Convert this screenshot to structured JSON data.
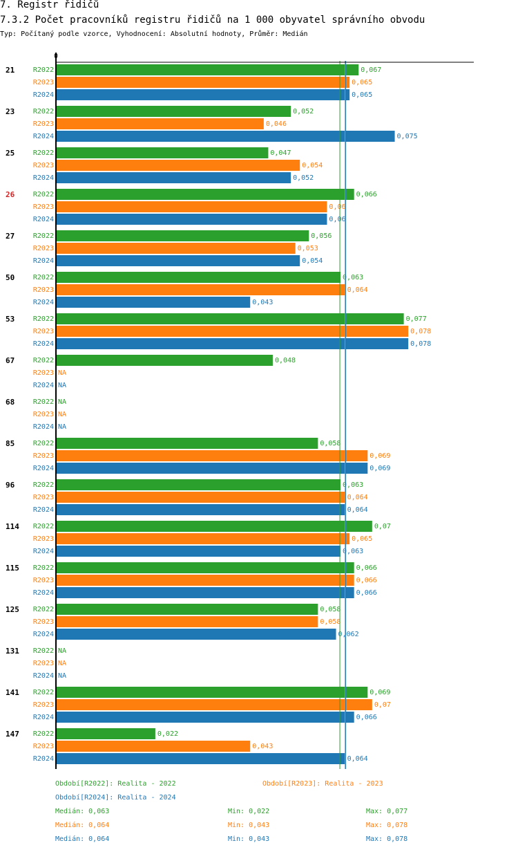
{
  "header": {
    "title": "7. Registr řidičů",
    "subtitle": "7.3.2 Počet pracovníků registru řidičů na 1 000 obyvatel správního obvodu",
    "type_line": "Typ: Počítaný podle vzorce, Vyhodnocení: Absolutní hodnoty, Průměr: Medián"
  },
  "colors": {
    "R2022": "#2ca02c",
    "R2023": "#ff7f0e",
    "R2024": "#1f77b4",
    "highlight": "#d62728",
    "axis": "#000000"
  },
  "chart_data": {
    "type": "bar",
    "orientation": "horizontal",
    "axis_zero_label": "0",
    "xlim": [
      0,
      0.0925
    ],
    "na_label": "NA",
    "series_names": [
      "R2022",
      "R2023",
      "R2024"
    ],
    "groups": [
      {
        "label": "21",
        "highlight": false,
        "values": [
          0.067,
          0.065,
          0.065
        ],
        "labels": [
          "0,067",
          "0,065",
          "0,065"
        ]
      },
      {
        "label": "23",
        "highlight": false,
        "values": [
          0.052,
          0.046,
          0.075
        ],
        "labels": [
          "0,052",
          "0,046",
          "0,075"
        ]
      },
      {
        "label": "25",
        "highlight": false,
        "values": [
          0.047,
          0.054,
          0.052
        ],
        "labels": [
          "0,047",
          "0,054",
          "0,052"
        ]
      },
      {
        "label": "26",
        "highlight": true,
        "values": [
          0.066,
          0.06,
          0.06
        ],
        "labels": [
          "0,066",
          "0,06",
          "0,06"
        ]
      },
      {
        "label": "27",
        "highlight": false,
        "values": [
          0.056,
          0.053,
          0.054
        ],
        "labels": [
          "0,056",
          "0,053",
          "0,054"
        ]
      },
      {
        "label": "50",
        "highlight": false,
        "values": [
          0.063,
          0.064,
          0.043
        ],
        "labels": [
          "0,063",
          "0,064",
          "0,043"
        ]
      },
      {
        "label": "53",
        "highlight": false,
        "values": [
          0.077,
          0.078,
          0.078
        ],
        "labels": [
          "0,077",
          "0,078",
          "0,078"
        ]
      },
      {
        "label": "67",
        "highlight": false,
        "values": [
          0.048,
          null,
          null
        ],
        "labels": [
          "0,048",
          "NA",
          "NA"
        ]
      },
      {
        "label": "68",
        "highlight": false,
        "values": [
          null,
          null,
          null
        ],
        "labels": [
          "NA",
          "NA",
          "NA"
        ]
      },
      {
        "label": "85",
        "highlight": false,
        "values": [
          0.058,
          0.069,
          0.069
        ],
        "labels": [
          "0,058",
          "0,069",
          "0,069"
        ]
      },
      {
        "label": "96",
        "highlight": false,
        "values": [
          0.063,
          0.064,
          0.064
        ],
        "labels": [
          "0,063",
          "0,064",
          "0,064"
        ]
      },
      {
        "label": "114",
        "highlight": false,
        "values": [
          0.07,
          0.065,
          0.063
        ],
        "labels": [
          "0,07",
          "0,065",
          "0,063"
        ]
      },
      {
        "label": "115",
        "highlight": false,
        "values": [
          0.066,
          0.066,
          0.066
        ],
        "labels": [
          "0,066",
          "0,066",
          "0,066"
        ]
      },
      {
        "label": "125",
        "highlight": false,
        "values": [
          0.058,
          0.058,
          0.062
        ],
        "labels": [
          "0,058",
          "0,058",
          "0,062"
        ]
      },
      {
        "label": "131",
        "highlight": false,
        "values": [
          null,
          null,
          null
        ],
        "labels": [
          "NA",
          "NA",
          "NA"
        ]
      },
      {
        "label": "141",
        "highlight": false,
        "values": [
          0.069,
          0.07,
          0.066
        ],
        "labels": [
          "0,069",
          "0,07",
          "0,066"
        ]
      },
      {
        "label": "147",
        "highlight": false,
        "values": [
          0.022,
          0.043,
          0.064
        ],
        "labels": [
          "0,022",
          "0,043",
          "0,064"
        ]
      }
    ],
    "medians": [
      0.063,
      0.064,
      0.064
    ]
  },
  "legend": {
    "periods": [
      "Období[R2022]: Realita - 2022",
      "Období[R2023]: Realita - 2023",
      "Období[R2024]: Realita - 2024"
    ],
    "stats": [
      {
        "median": "Medián: 0,063",
        "min": "Min: 0,022",
        "max": "Max: 0,077"
      },
      {
        "median": "Medián: 0,064",
        "min": "Min: 0,043",
        "max": "Max: 0,078"
      },
      {
        "median": "Medián: 0,064",
        "min": "Min: 0,043",
        "max": "Max: 0,078"
      }
    ]
  }
}
